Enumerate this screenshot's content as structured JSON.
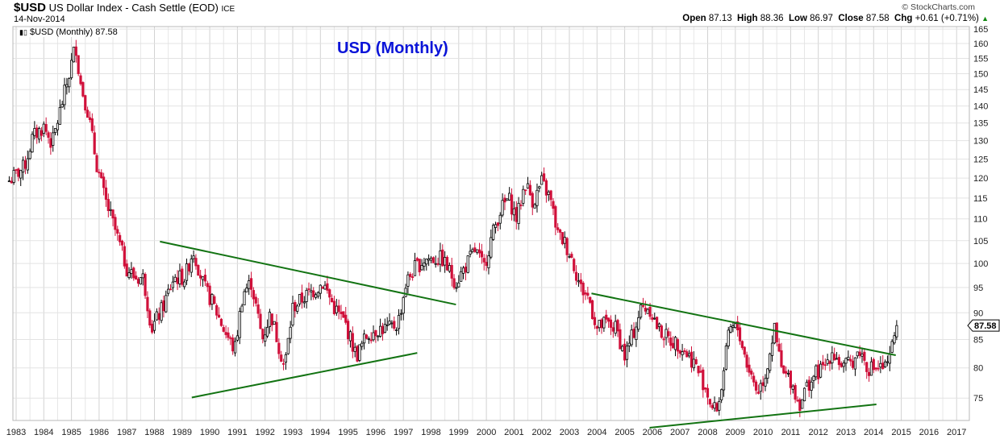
{
  "header": {
    "symbol": "$USD",
    "name": "US Dollar Index - Cash Settle (EOD)",
    "exchange": "ICE",
    "date": "14-Nov-2014",
    "copyright": "© StockCharts.com",
    "open_label": "Open",
    "open": "87.13",
    "high_label": "High",
    "high": "88.36",
    "low_label": "Low",
    "low": "86.97",
    "close_label": "Close",
    "close": "87.58",
    "chg_label": "Chg",
    "chg": "+0.61 (+0.71%)",
    "chg_icon": "up-triangle-icon"
  },
  "legend": "$USD (Monthly) 87.58",
  "colors": {
    "up": "#ffffff",
    "down": "#d0103a",
    "trend": "#127312",
    "title": "#0a14d8"
  },
  "chart_data": {
    "type": "candlestick",
    "title": "USD (Monthly)",
    "scale": "log",
    "ylim": [
      71.5,
      165.9
    ],
    "xlim": [
      1982.9,
      2017.5
    ],
    "y_ticks": [
      75,
      80,
      85,
      90,
      95,
      100,
      105,
      110,
      115,
      120,
      125,
      130,
      135,
      140,
      145,
      150,
      155,
      160,
      165
    ],
    "x_ticks": [
      "1983",
      "1984",
      "1985",
      "1986",
      "1987",
      "1988",
      "1989",
      "1990",
      "1991",
      "1992",
      "1993",
      "1994",
      "1995",
      "1996",
      "1997",
      "1998",
      "1999",
      "2000",
      "2001",
      "2002",
      "2003",
      "2004",
      "2005",
      "2006",
      "2007",
      "2008",
      "2009",
      "2010",
      "2011",
      "2012",
      "2013",
      "2014",
      "2015",
      "2016",
      "2017"
    ],
    "last_price": "87.58",
    "close_anchors": [
      [
        1982.7,
        119
      ],
      [
        1983.3,
        123
      ],
      [
        1983.6,
        131
      ],
      [
        1984.0,
        134
      ],
      [
        1984.3,
        129
      ],
      [
        1984.6,
        139
      ],
      [
        1984.9,
        149
      ],
      [
        1985.15,
        160
      ],
      [
        1985.3,
        148
      ],
      [
        1985.6,
        138
      ],
      [
        1985.9,
        124
      ],
      [
        1986.2,
        115
      ],
      [
        1986.6,
        107
      ],
      [
        1987.0,
        99
      ],
      [
        1987.3,
        97
      ],
      [
        1987.6,
        97
      ],
      [
        1987.9,
        87
      ],
      [
        1988.3,
        91
      ],
      [
        1988.7,
        97
      ],
      [
        1989.1,
        97
      ],
      [
        1989.4,
        103
      ],
      [
        1989.8,
        95
      ],
      [
        1990.1,
        92
      ],
      [
        1990.5,
        87
      ],
      [
        1990.9,
        83
      ],
      [
        1991.2,
        94
      ],
      [
        1991.5,
        96
      ],
      [
        1991.9,
        85
      ],
      [
        1992.2,
        90
      ],
      [
        1992.7,
        80
      ],
      [
        1993.0,
        91
      ],
      [
        1993.4,
        93
      ],
      [
        1993.9,
        95
      ],
      [
        1994.1,
        96
      ],
      [
        1994.5,
        91
      ],
      [
        1994.9,
        88
      ],
      [
        1995.3,
        82
      ],
      [
        1995.7,
        86
      ],
      [
        1996.1,
        87
      ],
      [
        1996.5,
        87
      ],
      [
        1996.8,
        88
      ],
      [
        1997.1,
        96
      ],
      [
        1997.4,
        99
      ],
      [
        1997.8,
        101
      ],
      [
        1998.4,
        101
      ],
      [
        1998.9,
        96
      ],
      [
        1999.2,
        99
      ],
      [
        1999.6,
        103
      ],
      [
        1999.9,
        99
      ],
      [
        2000.2,
        106
      ],
      [
        2000.5,
        112
      ],
      [
        2000.8,
        115
      ],
      [
        2001.1,
        110
      ],
      [
        2001.4,
        119
      ],
      [
        2001.7,
        114
      ],
      [
        2002.0,
        119
      ],
      [
        2002.3,
        115
      ],
      [
        2002.6,
        106
      ],
      [
        2002.8,
        105
      ],
      [
        2003.1,
        101
      ],
      [
        2003.4,
        95
      ],
      [
        2003.7,
        93
      ],
      [
        2004.0,
        87
      ],
      [
        2004.3,
        88
      ],
      [
        2004.7,
        87
      ],
      [
        2005.0,
        82
      ],
      [
        2005.3,
        86
      ],
      [
        2005.6,
        91
      ],
      [
        2005.9,
        91
      ],
      [
        2006.2,
        87
      ],
      [
        2006.6,
        85
      ],
      [
        2007.0,
        84
      ],
      [
        2007.5,
        81
      ],
      [
        2007.9,
        77
      ],
      [
        2008.2,
        73
      ],
      [
        2008.4,
        74
      ],
      [
        2008.8,
        87
      ],
      [
        2009.1,
        87
      ],
      [
        2009.4,
        81
      ],
      [
        2009.8,
        76
      ],
      [
        2010.1,
        79
      ],
      [
        2010.4,
        87
      ],
      [
        2010.7,
        79
      ],
      [
        2011.0,
        78
      ],
      [
        2011.3,
        74
      ],
      [
        2011.6,
        77
      ],
      [
        2011.9,
        79
      ],
      [
        2012.2,
        80
      ],
      [
        2012.5,
        83
      ],
      [
        2012.9,
        80
      ],
      [
        2013.2,
        81
      ],
      [
        2013.5,
        83
      ],
      [
        2013.8,
        80
      ],
      [
        2014.3,
        80
      ],
      [
        2014.5,
        80
      ],
      [
        2014.6,
        82
      ],
      [
        2014.75,
        86
      ],
      [
        2014.87,
        87.58
      ]
    ],
    "trendlines": [
      [
        [
          1988.2,
          104.8
        ],
        [
          1998.9,
          91.6
        ]
      ],
      [
        [
          1989.35,
          75.1
        ],
        [
          1997.5,
          82.6
        ]
      ],
      [
        [
          2003.8,
          93.8
        ],
        [
          2014.8,
          82.2
        ]
      ],
      [
        [
          2005.9,
          70.4
        ],
        [
          2014.1,
          74.0
        ]
      ]
    ]
  }
}
